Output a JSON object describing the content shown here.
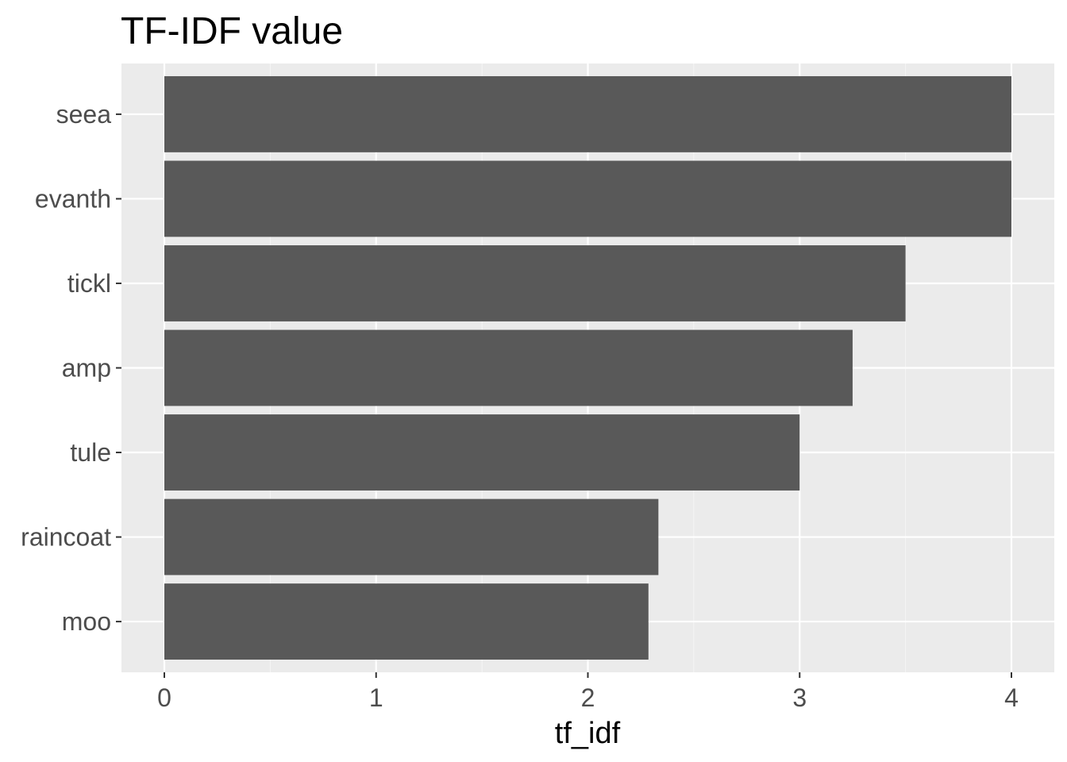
{
  "chart_data": {
    "type": "bar",
    "orientation": "horizontal",
    "title": "TF-IDF value",
    "xlabel": "tf_idf",
    "ylabel": "",
    "categories": [
      "seea",
      "evanth",
      "tickl",
      "amp",
      "tule",
      "raincoat",
      "moo"
    ],
    "values": [
      4.0,
      4.0,
      3.5,
      3.25,
      3.0,
      2.333,
      2.286
    ],
    "xlim": [
      -0.2,
      4.2
    ],
    "xticks": [
      "0",
      "1",
      "2",
      "3",
      "4"
    ],
    "grid": true,
    "legend": "none",
    "colors": {
      "bar": "#595959",
      "panel": "#ebebeb",
      "grid_major": "#ffffff",
      "grid_minor": "#f5f5f5",
      "tick_text": "#4d4d4d",
      "tick_mark": "#333333"
    }
  }
}
